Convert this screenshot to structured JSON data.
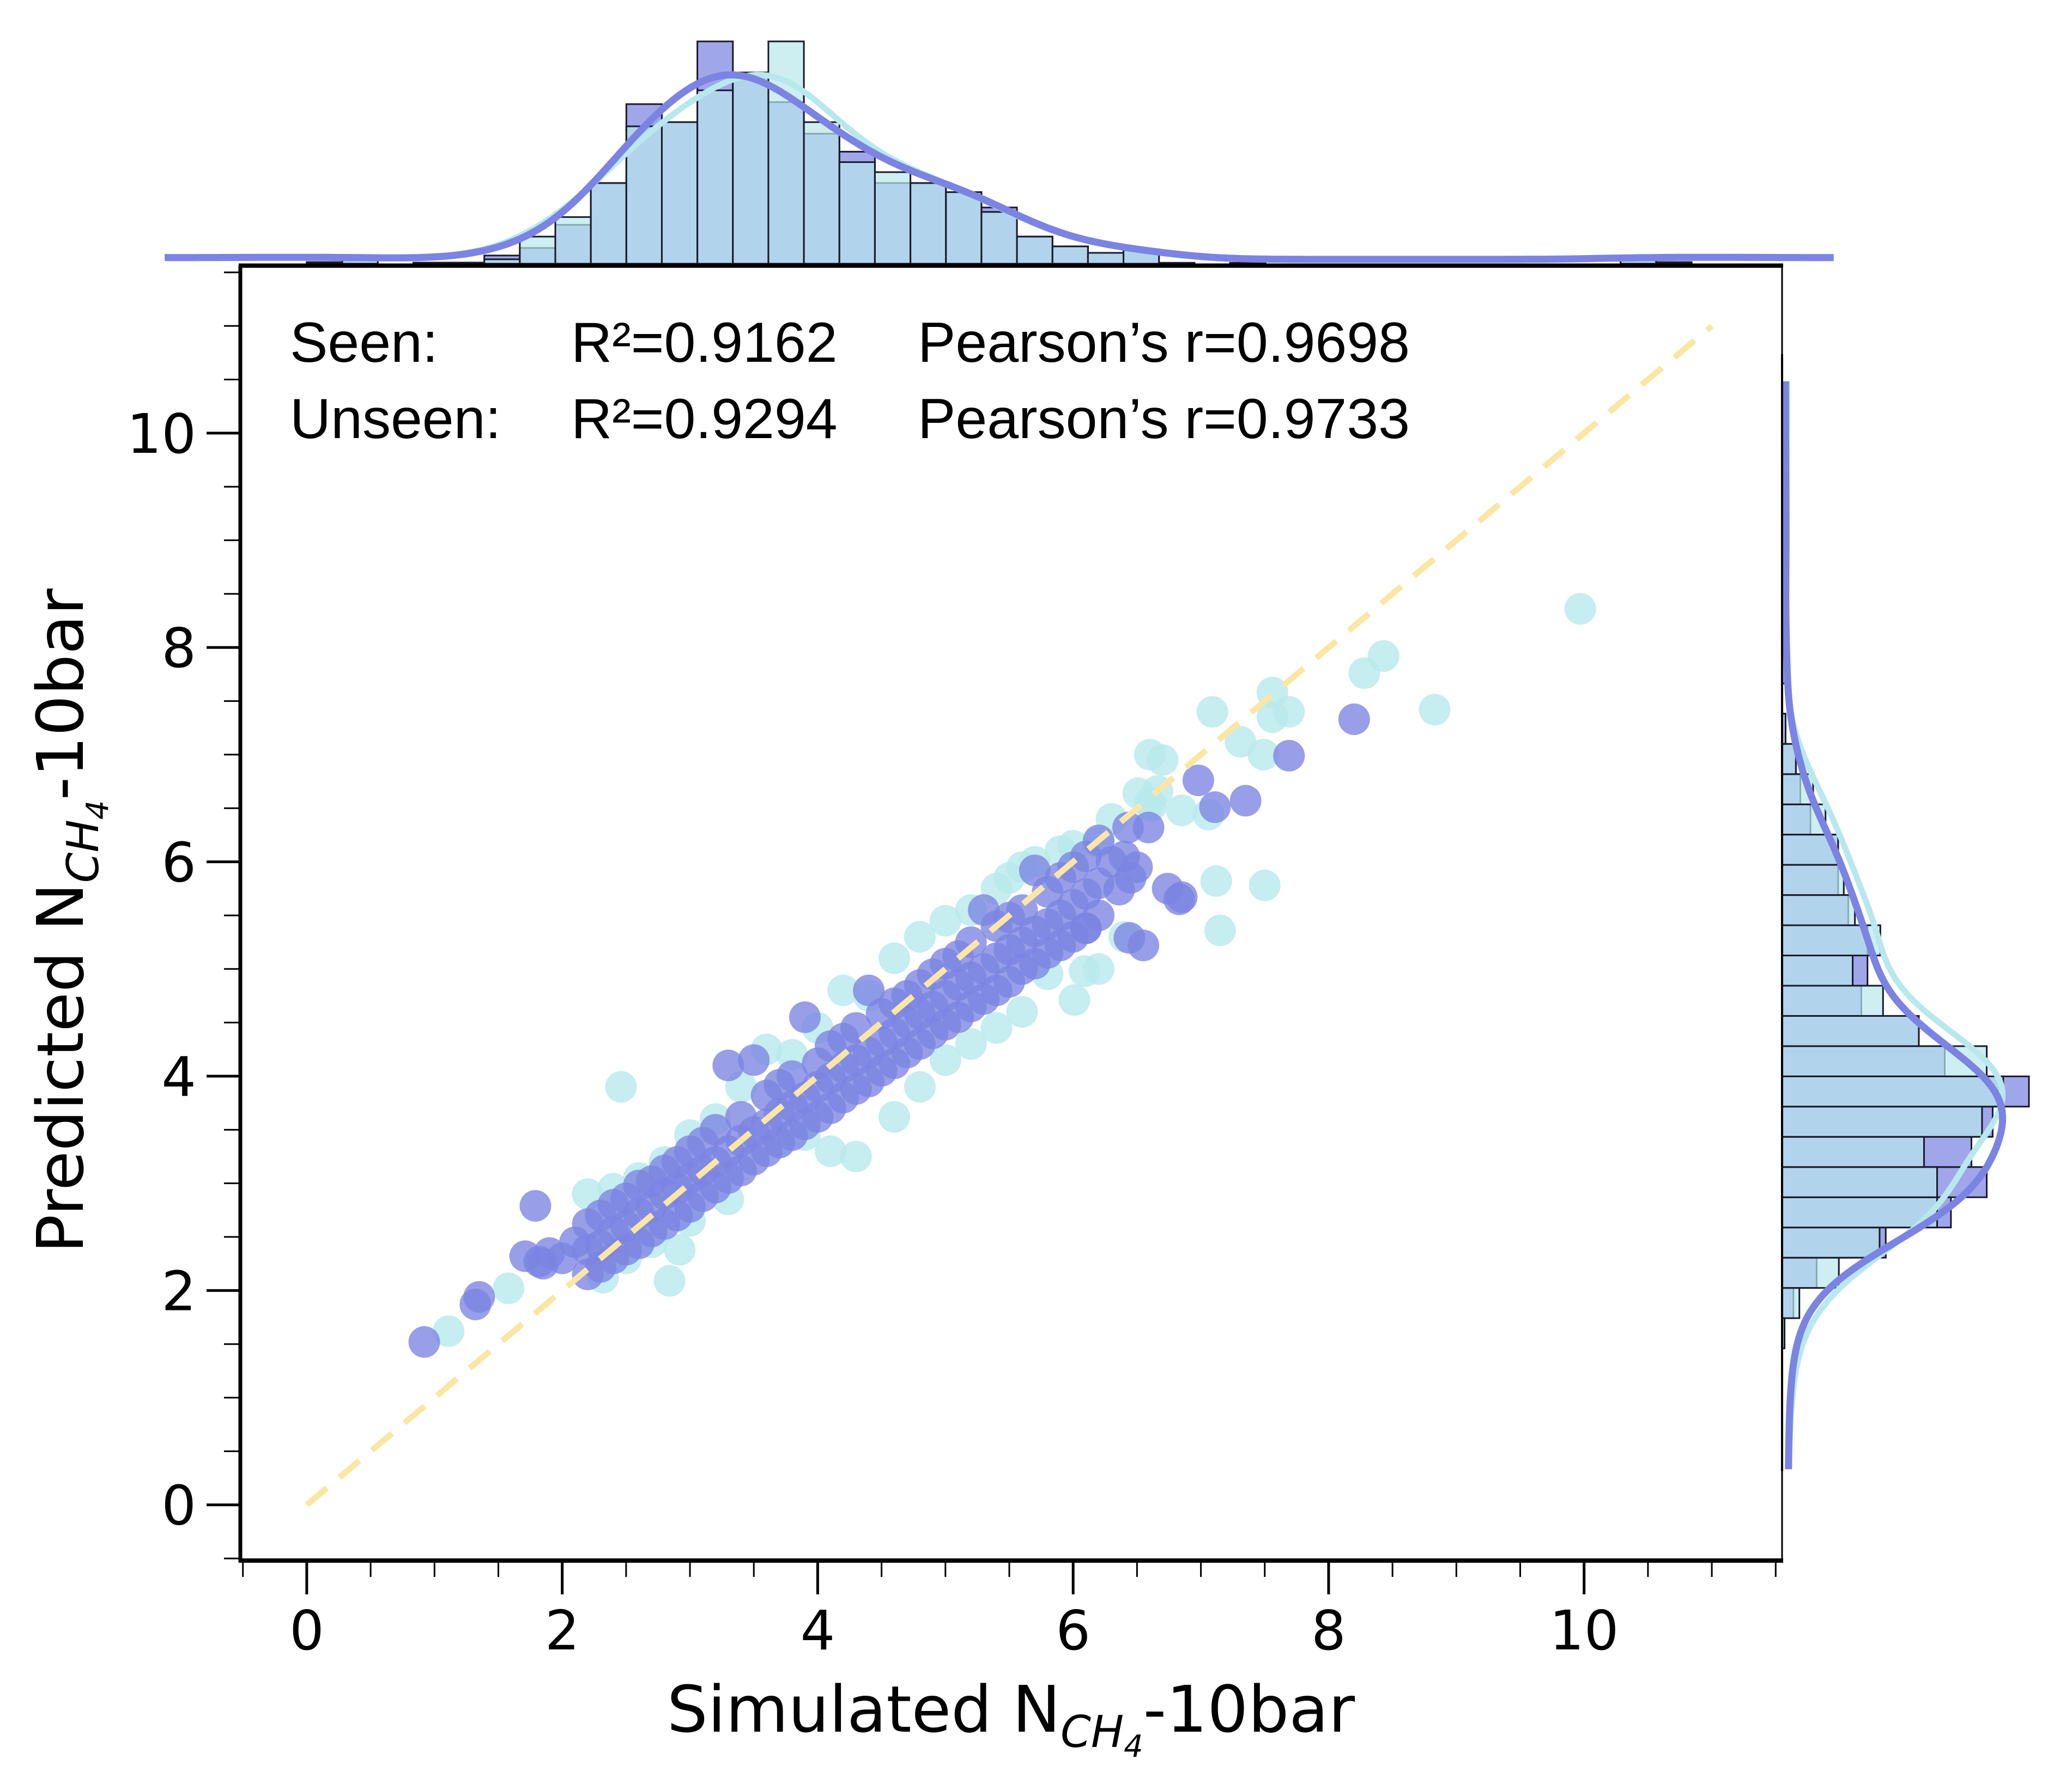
{
  "chart_data": {
    "type": "scatter",
    "xlabel": {
      "main": "Simulated N",
      "sub": "CH",
      "subsub": "4",
      "suffix": "-10bar"
    },
    "ylabel": {
      "main": "Predicted N",
      "sub": "CH",
      "subsub": "4",
      "suffix": "-10bar"
    },
    "xlim": [
      -0.52,
      11.55
    ],
    "ylim": [
      -0.52,
      11.55
    ],
    "xticks": [
      0,
      2,
      4,
      6,
      8,
      10
    ],
    "yticks": [
      0,
      2,
      4,
      6,
      8,
      10
    ],
    "xtick_labels": [
      "0",
      "2",
      "4",
      "6",
      "8",
      "10"
    ],
    "ytick_labels": [
      "0",
      "2",
      "4",
      "6",
      "8",
      "10"
    ],
    "minor_tick_step": 0.5,
    "grid": false,
    "identity_line": {
      "from": [
        0,
        0
      ],
      "to": [
        11,
        11
      ],
      "style": "dashed",
      "color": "#fde6a3"
    },
    "annotations": [
      {
        "label": "Seen:",
        "r2": "R²=0.9162",
        "pearson": "Pearson’s r=0.9698"
      },
      {
        "label": "Unseen:",
        "r2": "R²=0.9294",
        "pearson": "Pearson’s r=0.9733"
      }
    ],
    "series": [
      {
        "name": "Unseen",
        "color": "#b8e8ec",
        "points": [
          [
            9.97,
            8.36
          ],
          [
            8.43,
            7.92
          ],
          [
            8.28,
            7.76
          ],
          [
            8.83,
            7.42
          ],
          [
            7.56,
            7.58
          ],
          [
            7.69,
            7.4
          ],
          [
            7.56,
            7.35
          ],
          [
            7.09,
            7.4
          ],
          [
            7.31,
            7.12
          ],
          [
            7.49,
            7.0
          ],
          [
            6.6,
            7.0
          ],
          [
            6.85,
            6.48
          ],
          [
            7.06,
            6.44
          ],
          [
            6.51,
            6.64
          ],
          [
            6.66,
            6.66
          ],
          [
            6.61,
            6.52
          ],
          [
            7.12,
            5.82
          ],
          [
            7.5,
            5.78
          ],
          [
            7.15,
            5.36
          ],
          [
            6.01,
            4.71
          ],
          [
            6.09,
            4.98
          ],
          [
            6.2,
            6.18
          ],
          [
            5.9,
            6.1
          ],
          [
            5.7,
            6.0
          ],
          [
            5.5,
            5.85
          ],
          [
            2.46,
            3.9
          ],
          [
            1.11,
            1.62
          ],
          [
            1.58,
            2.02
          ],
          [
            2.32,
            2.12
          ],
          [
            2.84,
            2.09
          ],
          [
            2.92,
            2.38
          ],
          [
            2.2,
            2.9
          ],
          [
            2.4,
            2.95
          ],
          [
            2.6,
            3.05
          ],
          [
            2.8,
            3.2
          ],
          [
            3.0,
            3.45
          ],
          [
            3.2,
            3.6
          ],
          [
            3.4,
            3.9
          ],
          [
            3.6,
            4.25
          ],
          [
            3.8,
            4.2
          ],
          [
            4.0,
            4.45
          ],
          [
            4.2,
            4.8
          ],
          [
            4.4,
            4.75
          ],
          [
            4.6,
            5.1
          ],
          [
            4.8,
            5.3
          ],
          [
            5.0,
            5.45
          ],
          [
            5.2,
            5.55
          ],
          [
            5.4,
            5.75
          ],
          [
            5.6,
            5.95
          ],
          [
            6.0,
            6.15
          ],
          [
            6.3,
            6.4
          ],
          [
            6.6,
            6.55
          ],
          [
            6.7,
            6.95
          ],
          [
            2.5,
            2.3
          ],
          [
            2.7,
            2.45
          ],
          [
            3.0,
            2.65
          ],
          [
            3.3,
            2.85
          ],
          [
            3.7,
            3.4
          ],
          [
            3.9,
            3.45
          ],
          [
            4.1,
            3.3
          ],
          [
            4.3,
            3.25
          ],
          [
            4.6,
            3.62
          ],
          [
            4.8,
            3.9
          ],
          [
            5.0,
            4.15
          ],
          [
            5.2,
            4.3
          ],
          [
            5.4,
            4.45
          ],
          [
            5.6,
            4.6
          ],
          [
            5.8,
            4.95
          ],
          [
            6.2,
            5.0
          ],
          [
            6.4,
            5.3
          ]
        ]
      },
      {
        "name": "Seen",
        "color": "#7b84e2",
        "points": [
          [
            0.92,
            1.52
          ],
          [
            1.32,
            1.87
          ],
          [
            1.35,
            1.94
          ],
          [
            1.79,
            2.79
          ],
          [
            1.71,
            2.32
          ],
          [
            1.82,
            2.27
          ],
          [
            1.85,
            2.25
          ],
          [
            1.9,
            2.35
          ],
          [
            2.0,
            2.3
          ],
          [
            2.1,
            2.45
          ],
          [
            2.2,
            2.62
          ],
          [
            2.2,
            2.38
          ],
          [
            2.2,
            2.15
          ],
          [
            2.3,
            2.7
          ],
          [
            2.3,
            2.42
          ],
          [
            2.3,
            2.22
          ],
          [
            2.4,
            2.8
          ],
          [
            2.4,
            2.55
          ],
          [
            2.4,
            2.3
          ],
          [
            2.5,
            2.86
          ],
          [
            2.5,
            2.6
          ],
          [
            2.5,
            2.38
          ],
          [
            2.6,
            2.98
          ],
          [
            2.6,
            2.72
          ],
          [
            2.6,
            2.44
          ],
          [
            2.7,
            3.02
          ],
          [
            2.7,
            2.78
          ],
          [
            2.7,
            2.55
          ],
          [
            2.8,
            3.12
          ],
          [
            2.8,
            2.9
          ],
          [
            2.8,
            2.62
          ],
          [
            2.9,
            3.2
          ],
          [
            2.9,
            2.95
          ],
          [
            2.9,
            2.7
          ],
          [
            3.0,
            3.3
          ],
          [
            3.0,
            3.05
          ],
          [
            3.0,
            2.78
          ],
          [
            3.1,
            3.38
          ],
          [
            3.1,
            3.12
          ],
          [
            3.1,
            2.88
          ],
          [
            3.2,
            3.5
          ],
          [
            3.2,
            3.2
          ],
          [
            3.2,
            2.96
          ],
          [
            3.3,
            4.1
          ],
          [
            3.3,
            3.3
          ],
          [
            3.3,
            3.05
          ],
          [
            3.4,
            3.62
          ],
          [
            3.4,
            3.4
          ],
          [
            3.4,
            3.12
          ],
          [
            3.5,
            4.15
          ],
          [
            3.5,
            3.48
          ],
          [
            3.5,
            3.22
          ],
          [
            3.6,
            3.82
          ],
          [
            3.6,
            3.55
          ],
          [
            3.6,
            3.3
          ],
          [
            3.7,
            3.92
          ],
          [
            3.7,
            3.65
          ],
          [
            3.7,
            3.38
          ],
          [
            3.8,
            4.0
          ],
          [
            3.8,
            3.72
          ],
          [
            3.8,
            3.45
          ],
          [
            3.9,
            4.55
          ],
          [
            3.9,
            3.8
          ],
          [
            3.9,
            3.55
          ],
          [
            4.0,
            4.12
          ],
          [
            4.0,
            3.9
          ],
          [
            4.0,
            3.62
          ],
          [
            4.1,
            4.28
          ],
          [
            4.1,
            3.98
          ],
          [
            4.1,
            3.7
          ],
          [
            4.2,
            4.35
          ],
          [
            4.2,
            4.08
          ],
          [
            4.2,
            3.8
          ],
          [
            4.3,
            4.45
          ],
          [
            4.3,
            4.15
          ],
          [
            4.3,
            3.88
          ],
          [
            4.4,
            4.8
          ],
          [
            4.4,
            4.22
          ],
          [
            4.4,
            3.95
          ],
          [
            4.5,
            4.58
          ],
          [
            4.5,
            4.32
          ],
          [
            4.5,
            4.05
          ],
          [
            4.6,
            4.68
          ],
          [
            4.6,
            4.4
          ],
          [
            4.6,
            4.12
          ],
          [
            4.7,
            4.75
          ],
          [
            4.7,
            4.5
          ],
          [
            4.7,
            4.22
          ],
          [
            4.8,
            4.85
          ],
          [
            4.8,
            4.58
          ],
          [
            4.8,
            4.3
          ],
          [
            4.9,
            4.95
          ],
          [
            4.9,
            4.65
          ],
          [
            4.9,
            4.4
          ],
          [
            5.0,
            5.05
          ],
          [
            5.0,
            4.75
          ],
          [
            5.0,
            4.48
          ],
          [
            5.1,
            5.12
          ],
          [
            5.1,
            4.85
          ],
          [
            5.1,
            4.55
          ],
          [
            5.2,
            5.25
          ],
          [
            5.2,
            4.92
          ],
          [
            5.2,
            4.65
          ],
          [
            5.3,
            5.55
          ],
          [
            5.3,
            5.0
          ],
          [
            5.3,
            4.72
          ],
          [
            5.4,
            5.4
          ],
          [
            5.4,
            5.1
          ],
          [
            5.4,
            4.8
          ],
          [
            5.5,
            5.48
          ],
          [
            5.5,
            5.18
          ],
          [
            5.5,
            4.88
          ],
          [
            5.6,
            5.55
          ],
          [
            5.6,
            5.25
          ],
          [
            5.6,
            5.0
          ],
          [
            5.7,
            5.92
          ],
          [
            5.7,
            5.35
          ],
          [
            5.7,
            5.05
          ],
          [
            5.8,
            5.72
          ],
          [
            5.8,
            5.42
          ],
          [
            5.8,
            5.15
          ],
          [
            5.9,
            5.85
          ],
          [
            5.9,
            5.5
          ],
          [
            5.9,
            5.22
          ],
          [
            6.0,
            5.95
          ],
          [
            6.0,
            5.6
          ],
          [
            6.0,
            5.3
          ],
          [
            6.1,
            6.05
          ],
          [
            6.1,
            5.7
          ],
          [
            6.1,
            5.38
          ],
          [
            6.2,
            6.2
          ],
          [
            6.2,
            5.8
          ],
          [
            6.2,
            5.5
          ],
          [
            6.3,
            6.0
          ],
          [
            6.4,
            6.05
          ],
          [
            6.45,
            5.85
          ],
          [
            6.5,
            5.95
          ],
          [
            6.55,
            5.22
          ],
          [
            6.85,
            5.67
          ],
          [
            6.83,
            5.65
          ],
          [
            6.43,
            6.32
          ],
          [
            6.59,
            6.32
          ],
          [
            6.98,
            6.76
          ],
          [
            7.11,
            6.51
          ],
          [
            7.35,
            6.57
          ],
          [
            7.69,
            6.99
          ],
          [
            8.2,
            7.33
          ],
          [
            6.74,
            5.75
          ],
          [
            6.44,
            5.29
          ],
          [
            6.36,
            5.74
          ],
          [
            6.1,
            5.38
          ]
        ]
      }
    ],
    "top_histogram": {
      "bin_start": 0.0,
      "bin_width": 0.278,
      "relative_heights": {
        "Seen": [
          0.7,
          1.6,
          0,
          0,
          0.5,
          3.7,
          7.1,
          17.5,
          36.3,
          71.8,
          63.7,
          100,
          86,
          72.7,
          58.5,
          50.4,
          36.3,
          36.3,
          32.2,
          25.3,
          12.2,
          7.8,
          4.9,
          6.1,
          0.4,
          0,
          0,
          0,
          0,
          0,
          0,
          0,
          0,
          0,
          0,
          0,
          0,
          1.6,
          0.7
        ],
        "Unseen": [
          0.7,
          1.6,
          0,
          0.5,
          0.5,
          2,
          12.2,
          21,
          36.3,
          61.8,
          63.7,
          78,
          86,
          100,
          63.7,
          45.7,
          41.2,
          36.3,
          32.2,
          23.3,
          12.2,
          7.8,
          4.9,
          6.1,
          0.4,
          0,
          0.4,
          0,
          0,
          0,
          0,
          0,
          0,
          0,
          0,
          0,
          0,
          1.6,
          0.7
        ]
      }
    },
    "right_histogram": {
      "bin_start": 1.46,
      "bin_width": 0.282,
      "relative_heights": {
        "Seen": [
          1,
          4.6,
          14,
          42,
          68.4,
          82.9,
          76.7,
          85.3,
          100,
          65.9,
          55.4,
          32.1,
          34.6,
          34.6,
          26.8,
          22.7,
          22.7,
          11.5,
          7.4,
          5.6,
          1.4,
          0,
          1.3,
          0,
          0,
          0,
          0.7,
          0
        ],
        "Unseen": [
          1,
          7,
          23,
          39.5,
          62.8,
          62.8,
          57.5,
          81,
          89.6,
          82.9,
          55.4,
          40.9,
          28.6,
          39.8,
          29.5,
          25,
          22.7,
          17.6,
          12.6,
          5.6,
          1.4,
          0,
          0,
          0,
          0.7,
          0,
          0,
          0.7
        ]
      }
    }
  }
}
